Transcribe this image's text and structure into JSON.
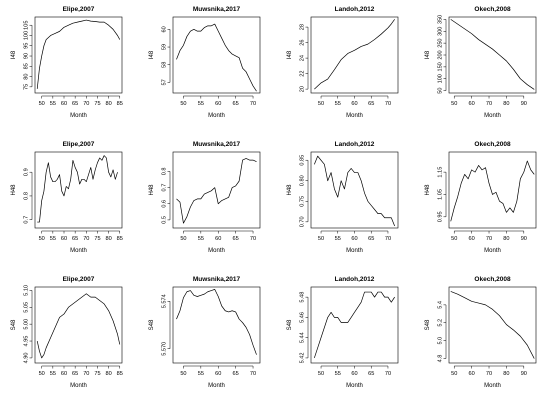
{
  "chart_data": [
    {
      "type": "line",
      "title": "Elipe,2007",
      "xlabel": "Month",
      "ylabel": "I48",
      "xlim": [
        47,
        86
      ],
      "ylim": [
        72,
        109
      ],
      "xticks": [
        50,
        55,
        60,
        65,
        70,
        75,
        80,
        85
      ],
      "yticks": [
        75,
        80,
        85,
        90,
        95,
        100,
        105
      ],
      "x": [
        48,
        49,
        50,
        51,
        52,
        54,
        56,
        58,
        60,
        62,
        64,
        66,
        68,
        70,
        72,
        74,
        76,
        78,
        80,
        82,
        84,
        85
      ],
      "y": [
        74,
        84,
        90,
        95,
        98,
        100,
        101,
        102,
        104,
        105,
        106,
        106.5,
        107,
        107.5,
        107,
        106.8,
        106.5,
        106.5,
        105,
        103,
        100,
        98
      ]
    },
    {
      "type": "line",
      "title": "Muwsnika,2017",
      "xlabel": "Month",
      "ylabel": "I48",
      "xlim": [
        47,
        72
      ],
      "ylim": [
        56.4,
        60.7
      ],
      "xticks": [
        50,
        55,
        60,
        65,
        70
      ],
      "yticks": [
        57,
        58,
        59,
        60
      ],
      "x": [
        48,
        49,
        50,
        51,
        52,
        53,
        54,
        55,
        56,
        57,
        58,
        59,
        60,
        61,
        62,
        63,
        64,
        65,
        66,
        67,
        68,
        69,
        70,
        71
      ],
      "y": [
        58.3,
        58.8,
        59.1,
        59.6,
        59.9,
        60.0,
        59.9,
        59.9,
        60.1,
        60.2,
        60.2,
        60.3,
        59.9,
        59.5,
        59.1,
        58.8,
        58.6,
        58.5,
        58.4,
        57.8,
        57.6,
        57.2,
        56.8,
        56.5
      ]
    },
    {
      "type": "line",
      "title": "Landoh,2012",
      "xlabel": "Month",
      "ylabel": "I48",
      "xlim": [
        47,
        73
      ],
      "ylim": [
        19.5,
        29.3
      ],
      "xticks": [
        50,
        55,
        60,
        65,
        70
      ],
      "yticks": [
        20,
        22,
        24,
        26,
        28
      ],
      "x": [
        48,
        49,
        50,
        52,
        54,
        56,
        58,
        60,
        62,
        64,
        66,
        68,
        70,
        71,
        72
      ],
      "y": [
        20,
        20.4,
        20.8,
        21.3,
        22.5,
        23.8,
        24.6,
        25,
        25.5,
        25.8,
        26.4,
        27.1,
        27.9,
        28.4,
        29
      ]
    },
    {
      "type": "line",
      "title": "Okech,2008",
      "xlabel": "Month",
      "ylabel": "I48",
      "xlim": [
        47,
        97
      ],
      "ylim": [
        40,
        360
      ],
      "xticks": [
        50,
        60,
        70,
        80,
        90
      ],
      "yticks": [
        50,
        100,
        150,
        200,
        250,
        300,
        350
      ],
      "x": [
        48,
        52,
        56,
        60,
        64,
        68,
        72,
        76,
        80,
        84,
        88,
        92,
        96
      ],
      "y": [
        350,
        330,
        310,
        290,
        265,
        245,
        225,
        200,
        175,
        140,
        100,
        75,
        55
      ]
    },
    {
      "type": "line",
      "title": "Elipe,2007",
      "xlabel": "Month",
      "ylabel": "H48",
      "xlim": [
        47,
        86
      ],
      "ylim": [
        0.665,
        0.985
      ],
      "xticks": [
        50,
        55,
        60,
        65,
        70,
        75,
        80,
        85
      ],
      "yticks": [
        0.7,
        0.8,
        0.9
      ],
      "x": [
        48,
        49,
        50,
        51,
        52,
        53,
        54,
        55,
        56,
        57,
        58,
        59,
        60,
        61,
        62,
        63,
        64,
        65,
        66,
        67,
        68,
        69,
        70,
        71,
        72,
        73,
        74,
        75,
        76,
        77,
        78,
        79,
        80,
        81,
        82,
        83,
        84
      ],
      "y": [
        0.69,
        0.69,
        0.78,
        0.82,
        0.9,
        0.94,
        0.88,
        0.86,
        0.86,
        0.87,
        0.89,
        0.82,
        0.8,
        0.84,
        0.83,
        0.87,
        0.95,
        0.92,
        0.9,
        0.85,
        0.87,
        0.87,
        0.86,
        0.89,
        0.92,
        0.87,
        0.91,
        0.94,
        0.96,
        0.95,
        0.97,
        0.96,
        0.9,
        0.88,
        0.91,
        0.87,
        0.9
      ]
    },
    {
      "type": "line",
      "title": "Muwsnika,2017",
      "xlabel": "Month",
      "ylabel": "H48",
      "xlim": [
        47,
        72
      ],
      "ylim": [
        0.45,
        0.92
      ],
      "xticks": [
        50,
        55,
        60,
        65,
        70
      ],
      "yticks": [
        0.5,
        0.6,
        0.7,
        0.8
      ],
      "x": [
        48,
        49,
        50,
        51,
        52,
        53,
        54,
        55,
        56,
        57,
        58,
        59,
        60,
        61,
        62,
        63,
        64,
        65,
        66,
        67,
        68,
        69,
        70,
        71
      ],
      "y": [
        0.63,
        0.61,
        0.48,
        0.52,
        0.58,
        0.62,
        0.63,
        0.63,
        0.66,
        0.67,
        0.68,
        0.7,
        0.6,
        0.62,
        0.63,
        0.64,
        0.7,
        0.71,
        0.74,
        0.87,
        0.88,
        0.87,
        0.87,
        0.86
      ]
    },
    {
      "type": "line",
      "title": "Landoh,2012",
      "xlabel": "Month",
      "ylabel": "H48",
      "xlim": [
        47,
        73
      ],
      "ylim": [
        0.685,
        0.87
      ],
      "xticks": [
        50,
        55,
        60,
        65,
        70
      ],
      "yticks": [
        0.7,
        0.75,
        0.8,
        0.85
      ],
      "x": [
        48,
        49,
        50,
        51,
        52,
        53,
        54,
        55,
        56,
        57,
        58,
        59,
        60,
        61,
        62,
        63,
        64,
        65,
        66,
        67,
        68,
        69,
        70,
        71,
        72
      ],
      "y": [
        0.84,
        0.86,
        0.85,
        0.84,
        0.8,
        0.82,
        0.78,
        0.76,
        0.8,
        0.78,
        0.82,
        0.83,
        0.82,
        0.82,
        0.8,
        0.77,
        0.75,
        0.74,
        0.73,
        0.72,
        0.72,
        0.71,
        0.71,
        0.71,
        0.69
      ]
    },
    {
      "type": "line",
      "title": "Okech,2008",
      "xlabel": "Month",
      "ylabel": "H48",
      "xlim": [
        47,
        97
      ],
      "ylim": [
        0.9,
        1.24
      ],
      "xticks": [
        50,
        60,
        70,
        80,
        90
      ],
      "yticks": [
        0.95,
        1.05,
        1.15
      ],
      "x": [
        48,
        50,
        52,
        54,
        56,
        58,
        60,
        62,
        64,
        66,
        68,
        70,
        72,
        74,
        76,
        78,
        80,
        82,
        84,
        86,
        88,
        90,
        92,
        94,
        96
      ],
      "y": [
        0.93,
        0.99,
        1.04,
        1.1,
        1.14,
        1.12,
        1.16,
        1.15,
        1.18,
        1.16,
        1.17,
        1.1,
        1.05,
        1.06,
        1.02,
        1.01,
        0.97,
        0.99,
        0.97,
        1.02,
        1.12,
        1.15,
        1.2,
        1.16,
        1.14
      ]
    },
    {
      "type": "line",
      "title": "Elipe,2007",
      "xlabel": "Month",
      "ylabel": "S48",
      "xlim": [
        47,
        86
      ],
      "ylim": [
        4.885,
        5.11
      ],
      "xticks": [
        50,
        55,
        60,
        65,
        70,
        75,
        80,
        85
      ],
      "yticks": [
        4.9,
        4.95,
        5.0,
        5.05,
        5.1
      ],
      "x": [
        48,
        49,
        50,
        51,
        52,
        54,
        56,
        58,
        60,
        62,
        64,
        66,
        68,
        70,
        72,
        74,
        76,
        78,
        80,
        82,
        84,
        85
      ],
      "y": [
        4.95,
        4.92,
        4.9,
        4.91,
        4.93,
        4.96,
        4.99,
        5.02,
        5.03,
        5.05,
        5.06,
        5.07,
        5.08,
        5.09,
        5.08,
        5.08,
        5.07,
        5.06,
        5.04,
        5.01,
        4.97,
        4.94
      ]
    },
    {
      "type": "line",
      "title": "Muwsnika,2017",
      "xlabel": "Month",
      "ylabel": "S48",
      "xlim": [
        47,
        72
      ],
      "ylim": [
        5.5688,
        5.5752
      ],
      "xticks": [
        50,
        55,
        60,
        65,
        70
      ],
      "yticks": [
        5.57,
        5.574
      ],
      "x": [
        48,
        49,
        50,
        51,
        52,
        53,
        54,
        55,
        56,
        57,
        58,
        59,
        60,
        61,
        62,
        63,
        64,
        65,
        66,
        67,
        68,
        69,
        70,
        71
      ],
      "y": [
        5.5725,
        5.5732,
        5.5743,
        5.5748,
        5.5749,
        5.5745,
        5.5744,
        5.5745,
        5.5746,
        5.5748,
        5.5749,
        5.575,
        5.5744,
        5.5736,
        5.5732,
        5.5731,
        5.5732,
        5.5731,
        5.5725,
        5.5722,
        5.5718,
        5.5712,
        5.5703,
        5.5695
      ]
    },
    {
      "type": "line",
      "title": "Landoh,2012",
      "xlabel": "Month",
      "ylabel": "S48",
      "xlim": [
        47,
        73
      ],
      "ylim": [
        5.415,
        5.49
      ],
      "xticks": [
        50,
        55,
        60,
        65,
        70
      ],
      "yticks": [
        5.42,
        5.44,
        5.46,
        5.48
      ],
      "x": [
        48,
        49,
        50,
        51,
        52,
        53,
        54,
        55,
        56,
        57,
        58,
        59,
        60,
        61,
        62,
        63,
        64,
        65,
        66,
        67,
        68,
        69,
        70,
        71,
        72
      ],
      "y": [
        5.42,
        5.43,
        5.44,
        5.45,
        5.46,
        5.465,
        5.46,
        5.46,
        5.455,
        5.455,
        5.455,
        5.46,
        5.465,
        5.47,
        5.475,
        5.485,
        5.485,
        5.485,
        5.48,
        5.485,
        5.485,
        5.48,
        5.48,
        5.475,
        5.48
      ]
    },
    {
      "type": "line",
      "title": "Okech,2008",
      "xlabel": "Month",
      "ylabel": "S48",
      "xlim": [
        47,
        97
      ],
      "ylim": [
        4.75,
        5.6
      ],
      "xticks": [
        50,
        60,
        70,
        80,
        90
      ],
      "yticks": [
        4.8,
        5.0,
        5.2,
        5.4
      ],
      "x": [
        48,
        52,
        56,
        60,
        64,
        68,
        72,
        76,
        80,
        84,
        88,
        92,
        96
      ],
      "y": [
        5.55,
        5.52,
        5.48,
        5.44,
        5.42,
        5.4,
        5.35,
        5.28,
        5.18,
        5.12,
        5.05,
        4.95,
        4.8
      ]
    }
  ]
}
